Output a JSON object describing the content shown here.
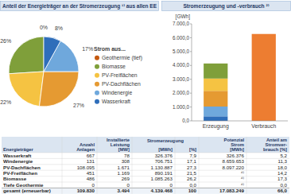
{
  "chart_data": [
    {
      "type": "pie",
      "title": "Anteil der Energieträger an der Stromerzeugung ¹⁾ aus allen EE",
      "legend_title": "Strom aus...",
      "legend": "right",
      "data_labels": true,
      "categories": [
        "Geothermie (tief)",
        "Biomasse",
        "PV-Freiflächen",
        "PV-Dachflächen",
        "Windenergie",
        "Wasserkraft"
      ],
      "values": [
        0,
        26,
        22,
        27,
        17,
        8
      ],
      "value_labels": [
        "0%",
        "26%",
        "22%",
        "27%",
        "17%",
        "8%"
      ],
      "colors": [
        "#c55a11",
        "#7f9f3a",
        "#f5c342",
        "#e59a32",
        "#6fa8dc",
        "#2f6eba"
      ]
    },
    {
      "type": "bar",
      "title": "Stromerzeugung und -verbrauch ²⁾",
      "y_label": "[GWh]",
      "stacked": true,
      "grid": false,
      "categories": [
        "Erzeugung",
        "Verbrauch"
      ],
      "series": [
        {
          "name": "Wasserkraft",
          "color": "#2f6eba",
          "values": [
            326.4,
            null
          ]
        },
        {
          "name": "Windenergie",
          "color": "#6fa8dc",
          "values": [
            706.8,
            null
          ]
        },
        {
          "name": "PV-Dachflächen",
          "color": "#e59a32",
          "values": [
            1130.9,
            null
          ]
        },
        {
          "name": "PV-Freiflächen",
          "color": "#f5c342",
          "values": [
            890.2,
            null
          ]
        },
        {
          "name": "Biomasse",
          "color": "#7f9f3a",
          "values": [
            1085.3,
            null
          ]
        },
        {
          "name": "Geothermie (tief)",
          "color": "#c55a11",
          "values": [
            0,
            null
          ]
        },
        {
          "name": "Verbrauch",
          "color": "#ed7d31",
          "values": [
            null,
            6270
          ]
        }
      ],
      "ylim": [
        0,
        7000
      ],
      "yticks": [
        {
          "value": 0,
          "label": "0,0"
        },
        {
          "value": 1000,
          "label": "1.000,0"
        },
        {
          "value": 2000,
          "label": "2.000,0"
        },
        {
          "value": 3000,
          "label": "3.000,0"
        },
        {
          "value": 4000,
          "label": "4.000,0"
        },
        {
          "value": 5000,
          "label": "5.000,0"
        },
        {
          "value": 6000,
          "label": "6.000,0"
        },
        {
          "value": 7000,
          "label": "7.000,0"
        }
      ]
    }
  ],
  "table": {
    "group_header": "Stromerzeugung",
    "columns": [
      {
        "lines": [
          "Energieträger"
        ]
      },
      {
        "lines": [
          "Anzahl",
          "Anlagen"
        ]
      },
      {
        "lines": [
          "Installierte",
          "Leistung",
          "[MW]"
        ]
      },
      {
        "lines": [
          "[MWh]"
        ]
      },
      {
        "lines": [
          "[%]"
        ]
      },
      {
        "lines": [
          "Potenzial",
          "Strom",
          "[MWh]"
        ]
      },
      {
        "lines": [
          "Anteil am",
          "Stromver-",
          "brauch [%]"
        ]
      }
    ],
    "rows": [
      [
        "Wasserkraft",
        "667",
        "78",
        "326.376",
        "7,9",
        "326.376",
        "5,2"
      ],
      [
        "Windenergie",
        "131",
        "308",
        "706.751",
        "17,1",
        "8.659.653",
        "11,3"
      ],
      [
        "PV-Dachflächen",
        "108.095",
        "1.671",
        "1.130.887",
        "27,3",
        "8.097.220",
        "18,0"
      ],
      [
        "PV-Freiflächen",
        "451",
        "1.169",
        "890.191",
        "21,5",
        "⁴⁾",
        "14,2"
      ],
      [
        "Biomasse",
        "486",
        "269",
        "1.085.263",
        "26,2",
        "⁴⁾",
        "17,3"
      ],
      [
        "Tiefe Geothermie",
        "0",
        "0",
        "0",
        "0,0",
        "⁴⁾",
        "0,0"
      ],
      [
        "gesamt (erneuerbar)",
        "109.830",
        "3.494",
        "4.139.468",
        "100",
        "17.083.249",
        "66,0"
      ]
    ]
  }
}
